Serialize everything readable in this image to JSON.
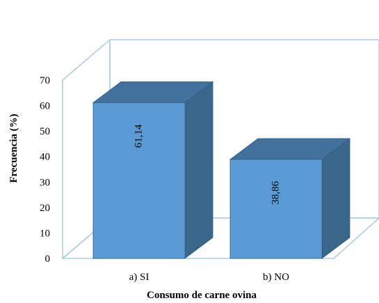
{
  "chart_data": {
    "type": "bar",
    "categories": [
      "a) SI",
      "b) NO"
    ],
    "values": [
      61.14,
      38.86
    ],
    "value_labels": [
      "61,14",
      "38,86"
    ],
    "title": "",
    "xlabel": "Consumo de carne ovina",
    "ylabel": "Frecuencia (%)",
    "ylim": [
      0,
      70
    ],
    "yticks": [
      "0",
      "10",
      "20",
      "30",
      "40",
      "50",
      "60",
      "70"
    ],
    "legend": "none",
    "grid": false,
    "style": "3d-column",
    "colors": {
      "bar_front": "#5b9bd5",
      "bar_top": "#41719c",
      "bar_side": "#3a6689",
      "wall_line": "#9dc3e6",
      "edge": "#2e5f8a"
    }
  }
}
